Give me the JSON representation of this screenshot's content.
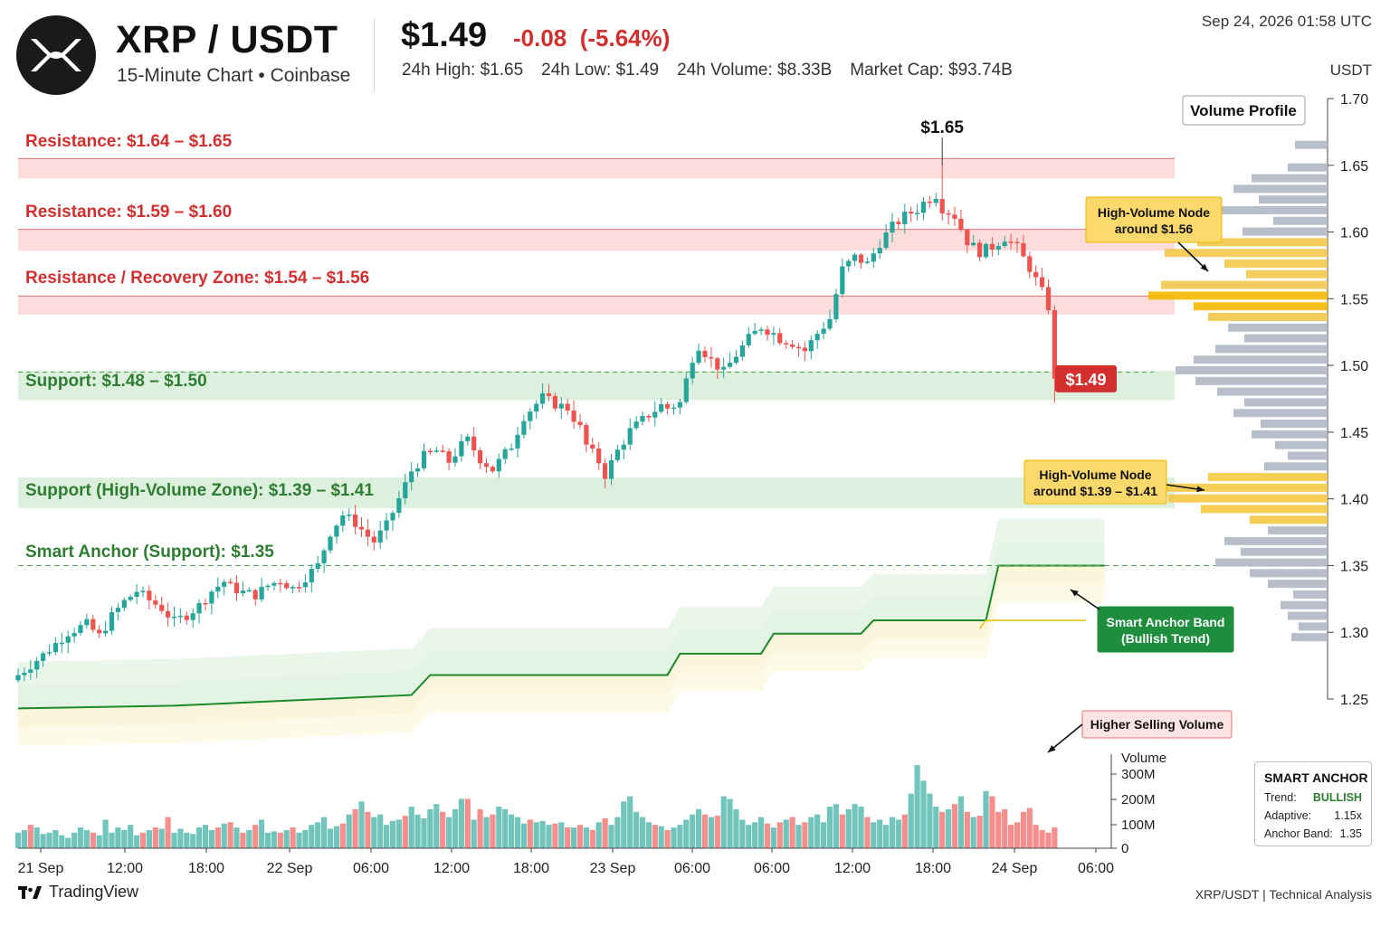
{
  "header": {
    "pair": "XRP / USDT",
    "subtitle": "15-Minute Chart • Coinbase",
    "price": "$1.49",
    "change": "-0.08",
    "change_pct": "(-5.64%)",
    "stats": [
      {
        "label": "24h High:",
        "value": "$1.65"
      },
      {
        "label": "24h Low:",
        "value": "$1.49"
      },
      {
        "label": "24h Volume:",
        "value": "$8.33B"
      },
      {
        "label": "Market Cap:",
        "value": "$93.74B"
      }
    ],
    "timestamp": "Sep 24, 2026  01:58 UTC",
    "unit": "USDT"
  },
  "colors": {
    "up": "#26a69a",
    "down": "#ef5350",
    "resistance": "#d32f2f",
    "support": "#2e7d32",
    "accent_yellow": "#f5c518"
  },
  "chart_data": {
    "type": "candlestick",
    "timeframe": "15m",
    "price_axis": {
      "label": "USDT",
      "ticks": [
        "1.70",
        "1.65",
        "1.60",
        "1.55",
        "1.50",
        "1.45",
        "1.40",
        "1.35",
        "1.30",
        "1.25"
      ],
      "ylim": [
        1.245,
        1.705
      ]
    },
    "x_ticks": [
      "21 Sep",
      "12:00",
      "18:00",
      "22 Sep",
      "06:00",
      "12:00",
      "18:00",
      "23 Sep",
      "06:00",
      "06:00",
      "12:00",
      "18:00",
      "24 Sep",
      "06:00"
    ],
    "ohlc_path": [
      [
        0,
        1.268
      ],
      [
        4,
        1.283
      ],
      [
        8,
        1.3
      ],
      [
        11,
        1.306
      ],
      [
        13,
        1.297
      ],
      [
        15,
        1.312
      ],
      [
        17,
        1.323
      ],
      [
        19,
        1.331
      ],
      [
        21,
        1.324
      ],
      [
        23,
        1.318
      ],
      [
        25,
        1.308
      ],
      [
        27,
        1.313
      ],
      [
        29,
        1.32
      ],
      [
        31,
        1.331
      ],
      [
        33,
        1.338
      ],
      [
        34,
        1.334
      ],
      [
        36,
        1.33
      ],
      [
        38,
        1.328
      ],
      [
        40,
        1.335
      ],
      [
        42,
        1.339
      ],
      [
        44,
        1.333
      ],
      [
        45,
        1.337
      ],
      [
        48,
        1.35
      ],
      [
        50,
        1.375
      ],
      [
        52,
        1.388
      ],
      [
        54,
        1.382
      ],
      [
        56,
        1.372
      ],
      [
        57,
        1.368
      ],
      [
        59,
        1.38
      ],
      [
        61,
        1.4
      ],
      [
        63,
        1.421
      ],
      [
        65,
        1.432
      ],
      [
        67,
        1.436
      ],
      [
        69,
        1.428
      ],
      [
        71,
        1.44
      ],
      [
        72,
        1.444
      ],
      [
        74,
        1.43
      ],
      [
        76,
        1.422
      ],
      [
        79,
        1.44
      ],
      [
        81,
        1.462
      ],
      [
        84,
        1.476
      ],
      [
        86,
        1.471
      ],
      [
        88,
        1.468
      ],
      [
        90,
        1.453
      ],
      [
        91,
        1.44
      ],
      [
        93,
        1.428
      ],
      [
        94,
        1.418
      ],
      [
        96,
        1.436
      ],
      [
        98,
        1.451
      ],
      [
        101,
        1.463
      ],
      [
        103,
        1.47
      ],
      [
        104,
        1.468
      ],
      [
        106,
        1.472
      ],
      [
        108,
        1.506
      ],
      [
        109,
        1.515
      ],
      [
        111,
        1.504
      ],
      [
        113,
        1.495
      ],
      [
        115,
        1.508
      ],
      [
        117,
        1.52
      ],
      [
        119,
        1.529
      ],
      [
        121,
        1.524
      ],
      [
        122,
        1.52
      ],
      [
        124,
        1.517
      ],
      [
        126,
        1.511
      ],
      [
        128,
        1.524
      ],
      [
        130,
        1.535
      ],
      [
        132,
        1.572
      ],
      [
        134,
        1.581
      ],
      [
        136,
        1.576
      ],
      [
        138,
        1.592
      ],
      [
        140,
        1.604
      ],
      [
        142,
        1.612
      ],
      [
        144,
        1.617
      ],
      [
        145,
        1.622
      ],
      [
        147,
        1.628
      ],
      [
        148,
        1.618
      ],
      [
        150,
        1.612
      ],
      [
        152,
        1.593
      ],
      [
        154,
        1.585
      ],
      [
        156,
        1.589
      ],
      [
        158,
        1.596
      ],
      [
        160,
        1.588
      ],
      [
        162,
        1.573
      ],
      [
        164,
        1.555
      ],
      [
        166,
        1.533
      ],
      [
        167,
        1.511
      ],
      [
        168,
        1.492
      ]
    ],
    "last_price": 1.49,
    "peak_label": "$1.65",
    "peak": 1.65,
    "zones": [
      {
        "kind": "resistance",
        "label": "Resistance: $1.64 – $1.65",
        "from": 1.64,
        "to": 1.655
      },
      {
        "kind": "resistance",
        "label": "Resistance: $1.59 – $1.60",
        "from": 1.586,
        "to": 1.602
      },
      {
        "kind": "resistance",
        "label": "Resistance / Recovery Zone: $1.54 – $1.56",
        "from": 1.538,
        "to": 1.552
      },
      {
        "kind": "support",
        "label": "Support: $1.48 – $1.50",
        "from": 1.474,
        "to": 1.496
      },
      {
        "kind": "support",
        "label": "Support (High-Volume Zone): $1.39 – $1.41",
        "from": 1.393,
        "to": 1.416
      }
    ],
    "support_dashed": 1.495,
    "smart_anchor": {
      "label": "Smart Anchor (Support): $1.35",
      "level": 1.35,
      "steps": [
        [
          0,
          1.243
        ],
        [
          25,
          1.245
        ],
        [
          63,
          1.253
        ],
        [
          66,
          1.268
        ],
        [
          104,
          1.268
        ],
        [
          106,
          1.284
        ],
        [
          119,
          1.284
        ],
        [
          121,
          1.299
        ],
        [
          135,
          1.299
        ],
        [
          137,
          1.309
        ],
        [
          155,
          1.309
        ],
        [
          157,
          1.35
        ],
        [
          174,
          1.35
        ]
      ]
    },
    "volume_profile": {
      "title": "Volume Profile",
      "bars": [
        [
          1.665,
          0.18
        ],
        [
          1.648,
          0.22
        ],
        [
          1.64,
          0.42
        ],
        [
          1.632,
          0.52
        ],
        [
          1.624,
          0.38
        ],
        [
          1.616,
          0.62
        ],
        [
          1.608,
          0.3
        ],
        [
          1.6,
          0.47
        ],
        [
          1.592,
          0.72
        ],
        [
          1.584,
          0.9
        ],
        [
          1.576,
          0.57
        ],
        [
          1.568,
          0.45
        ],
        [
          1.56,
          0.92
        ],
        [
          1.552,
          0.99
        ],
        [
          1.544,
          0.74
        ],
        [
          1.536,
          0.66
        ],
        [
          1.528,
          0.55
        ],
        [
          1.52,
          0.46
        ],
        [
          1.512,
          0.62
        ],
        [
          1.504,
          0.74
        ],
        [
          1.496,
          0.84
        ],
        [
          1.488,
          0.73
        ],
        [
          1.48,
          0.61
        ],
        [
          1.472,
          0.46
        ],
        [
          1.464,
          0.52
        ],
        [
          1.456,
          0.37
        ],
        [
          1.448,
          0.42
        ],
        [
          1.44,
          0.29
        ],
        [
          1.432,
          0.22
        ],
        [
          1.424,
          0.35
        ],
        [
          1.416,
          0.66
        ],
        [
          1.408,
          0.93
        ],
        [
          1.4,
          0.88
        ],
        [
          1.392,
          0.7
        ],
        [
          1.384,
          0.43
        ],
        [
          1.376,
          0.33
        ],
        [
          1.368,
          0.57
        ],
        [
          1.36,
          0.48
        ],
        [
          1.352,
          0.62
        ],
        [
          1.344,
          0.43
        ],
        [
          1.336,
          0.33
        ],
        [
          1.328,
          0.19
        ],
        [
          1.32,
          0.26
        ],
        [
          1.312,
          0.22
        ],
        [
          1.304,
          0.16
        ],
        [
          1.296,
          0.2
        ]
      ]
    },
    "volume_axis": {
      "label": "Volume",
      "ticks": [
        "300M",
        "200M",
        "100M",
        "0"
      ],
      "max_m": 390
    },
    "volume_bars": [
      60,
      70,
      90,
      80,
      55,
      60,
      70,
      50,
      40,
      60,
      80,
      70,
      60,
      50,
      110,
      60,
      80,
      70,
      90,
      50,
      60,
      70,
      80,
      75,
      120,
      60,
      75,
      60,
      55,
      80,
      90,
      70,
      80,
      95,
      100,
      80,
      60,
      70,
      90,
      110,
      60,
      65,
      60,
      70,
      80,
      60,
      70,
      90,
      100,
      120,
      75,
      85,
      95,
      130,
      150,
      180,
      140,
      120,
      130,
      90,
      105,
      110,
      125,
      160,
      130,
      115,
      150,
      170,
      140,
      120,
      150,
      190,
      190,
      110,
      150,
      120,
      130,
      160,
      150,
      130,
      120,
      95,
      110,
      100,
      105,
      90,
      95,
      100,
      80,
      80,
      90,
      80,
      70,
      100,
      115,
      90,
      120,
      180,
      200,
      140,
      120,
      100,
      90,
      85,
      70,
      80,
      90,
      110,
      130,
      150,
      130,
      120,
      125,
      200,
      190,
      150,
      110,
      90,
      100,
      120,
      95,
      80,
      100,
      110,
      120,
      90,
      100,
      120,
      130,
      100,
      160,
      170,
      130,
      150,
      170,
      160,
      120,
      100,
      110,
      90,
      120,
      110,
      130,
      210,
      320,
      260,
      210,
      160,
      140,
      150,
      170,
      200,
      140,
      120,
      125,
      220,
      200,
      140,
      150,
      90,
      100,
      140,
      155,
      90,
      70,
      60,
      80,
      200,
      330,
      380,
      210
    ],
    "annotations": [
      {
        "text1": "High-Volume Node",
        "text2": "around $1.56"
      },
      {
        "text1": "High-Volume Node",
        "text2": "around $1.39 – $1.41"
      },
      {
        "text1": "Smart Anchor Band",
        "text2": "(Bullish Trend)"
      },
      {
        "text1": "Higher Selling Volume",
        "text2": ""
      }
    ]
  },
  "anchor_panel": {
    "title": "SMART ANCHOR",
    "rows": [
      {
        "label": "Trend:",
        "value": "BULLISH"
      },
      {
        "label": "Adaptive:",
        "value": "1.15x"
      },
      {
        "label": "Anchor Band:",
        "value": "1.35"
      }
    ]
  },
  "footer": {
    "brand": "TradingView",
    "right": "XRP/USDT | Technical Analysis"
  }
}
